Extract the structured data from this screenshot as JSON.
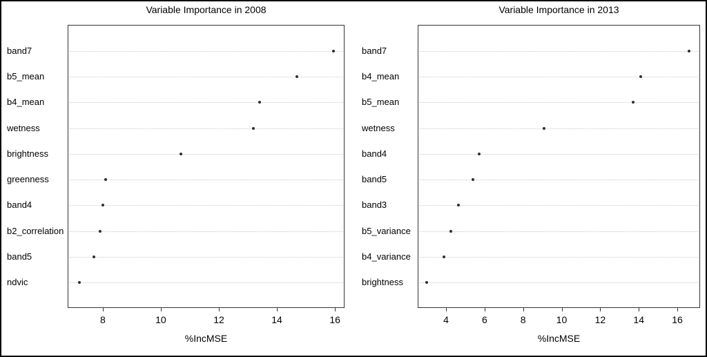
{
  "figure": {
    "background": "#ffffff",
    "border_color": "#000000",
    "text_color": "#000000"
  },
  "chart_data": [
    {
      "type": "scatter",
      "variant": "dotchart-horizontal",
      "title": "Variable Importance in 2008",
      "xlabel": "%IncMSE",
      "categories": [
        "band7",
        "b5_mean",
        "b4_mean",
        "wetness",
        "brightness",
        "greenness",
        "band4",
        "b2_correlation",
        "band5",
        "ndvic"
      ],
      "values": [
        15.95,
        14.7,
        13.4,
        13.2,
        10.7,
        8.1,
        8.0,
        7.9,
        7.7,
        7.2
      ],
      "xticks": [
        8,
        10,
        12,
        14,
        16
      ],
      "xlim": [
        6.79,
        16.33
      ],
      "grid": "dotted-horizontal-per-category",
      "legend": "none",
      "dot_color": "#2e2e2e",
      "grid_color": "#c9c9c9"
    },
    {
      "type": "scatter",
      "variant": "dotchart-horizontal",
      "title": "Variable Importance in 2013",
      "xlabel": "%IncMSE",
      "categories": [
        "band7",
        "b4_mean",
        "b5_mean",
        "wetness",
        "band4",
        "band5",
        "band3",
        "b5_variance",
        "b4_variance",
        "brightness"
      ],
      "values": [
        16.6,
        14.1,
        13.7,
        9.1,
        5.7,
        5.4,
        4.65,
        4.25,
        3.9,
        3.0
      ],
      "xticks": [
        4,
        6,
        8,
        10,
        12,
        14,
        16
      ],
      "xlim": [
        2.53,
        17.18
      ],
      "grid": "dotted-horizontal-per-category",
      "legend": "none",
      "dot_color": "#2e2e2e",
      "grid_color": "#c9c9c9"
    }
  ]
}
